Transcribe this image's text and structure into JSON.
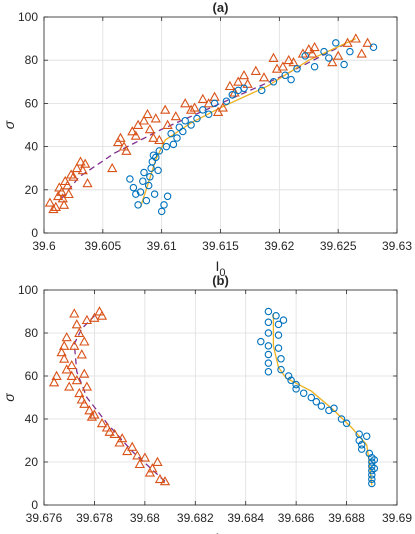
{
  "chart_data": [
    {
      "type": "scatter",
      "title": "(a)",
      "xlabel": "I",
      "xlabel_sub": "0",
      "ylabel": "σ",
      "xlim": [
        39.6,
        39.63
      ],
      "ylim": [
        0,
        100
      ],
      "xticks": [
        "39.6",
        "39.605",
        "39.61",
        "39.615",
        "39.62",
        "39.625",
        "39.63"
      ],
      "yticks": [
        "0",
        "20",
        "40",
        "60",
        "80",
        "100"
      ],
      "grid": true,
      "series": [
        {
          "marker": "triangle",
          "color": "#D95319",
          "points": [
            [
              39.6005,
              14
            ],
            [
              39.6008,
              11
            ],
            [
              39.601,
              12
            ],
            [
              39.6012,
              17
            ],
            [
              39.6013,
              21
            ],
            [
              39.6015,
              19
            ],
            [
              39.6016,
              16
            ],
            [
              39.6017,
              13
            ],
            [
              39.6018,
              24
            ],
            [
              39.602,
              22
            ],
            [
              39.6021,
              18
            ],
            [
              39.6023,
              27
            ],
            [
              39.6025,
              26
            ],
            [
              39.6028,
              30
            ],
            [
              39.6031,
              33
            ],
            [
              39.6033,
              29
            ],
            [
              39.6035,
              32
            ],
            [
              39.6037,
              23
            ],
            [
              39.6058,
              30
            ],
            [
              39.6063,
              42
            ],
            [
              39.6065,
              44
            ],
            [
              39.6068,
              40
            ],
            [
              39.607,
              38
            ],
            [
              39.6075,
              47
            ],
            [
              39.6078,
              45
            ],
            [
              39.608,
              50
            ],
            [
              39.6085,
              52
            ],
            [
              39.6088,
              55
            ],
            [
              39.609,
              48
            ],
            [
              39.6093,
              44
            ],
            [
              39.6095,
              53
            ],
            [
              39.6098,
              43
            ],
            [
              39.6103,
              57
            ],
            [
              39.6105,
              50
            ],
            [
              39.6112,
              54
            ],
            [
              39.612,
              60
            ],
            [
              39.6125,
              57
            ],
            [
              39.6128,
              58
            ],
            [
              39.6135,
              62
            ],
            [
              39.614,
              60
            ],
            [
              39.6145,
              63
            ],
            [
              39.6148,
              56
            ],
            [
              39.6152,
              58
            ],
            [
              39.6158,
              68
            ],
            [
              39.6162,
              65
            ],
            [
              39.6165,
              70
            ],
            [
              39.617,
              73
            ],
            [
              39.6173,
              69
            ],
            [
              39.618,
              75
            ],
            [
              39.6187,
              72
            ],
            [
              39.6195,
              81
            ],
            [
              39.6198,
              76
            ],
            [
              39.6203,
              77
            ],
            [
              39.6208,
              80
            ],
            [
              39.6212,
              79
            ],
            [
              39.622,
              83
            ],
            [
              39.6225,
              85
            ],
            [
              39.6228,
              83
            ],
            [
              39.623,
              86
            ],
            [
              39.6245,
              79
            ],
            [
              39.625,
              82
            ],
            [
              39.6258,
              88
            ],
            [
              39.6265,
              90
            ],
            [
              39.627,
              83
            ],
            [
              39.6275,
              88
            ]
          ]
        },
        {
          "marker": "circle",
          "color": "#0072BD",
          "points": [
            [
              39.6073,
              25
            ],
            [
              39.6076,
              21
            ],
            [
              39.6078,
              18
            ],
            [
              39.608,
              13
            ],
            [
              39.6082,
              19
            ],
            [
              39.6084,
              24
            ],
            [
              39.6085,
              28
            ],
            [
              39.6087,
              15
            ],
            [
              39.6089,
              22
            ],
            [
              39.609,
              26
            ],
            [
              39.6091,
              30
            ],
            [
              39.6092,
              33
            ],
            [
              39.6093,
              36
            ],
            [
              39.6094,
              18
            ],
            [
              39.6095,
              35
            ],
            [
              39.6097,
              29
            ],
            [
              39.6098,
              38
            ],
            [
              39.61,
              10
            ],
            [
              39.6102,
              13
            ],
            [
              39.6104,
              40
            ],
            [
              39.6105,
              17
            ],
            [
              39.6108,
              46
            ],
            [
              39.611,
              41
            ],
            [
              39.6113,
              44
            ],
            [
              39.6115,
              49
            ],
            [
              39.6118,
              47
            ],
            [
              39.612,
              52
            ],
            [
              39.6125,
              50
            ],
            [
              39.613,
              53
            ],
            [
              39.6135,
              57
            ],
            [
              39.614,
              55
            ],
            [
              39.6145,
              60
            ],
            [
              39.6155,
              61
            ],
            [
              39.616,
              64
            ],
            [
              39.6165,
              66
            ],
            [
              39.617,
              67
            ],
            [
              39.6185,
              66
            ],
            [
              39.6195,
              70
            ],
            [
              39.6205,
              73
            ],
            [
              39.621,
              71
            ],
            [
              39.6215,
              76
            ],
            [
              39.6222,
              82
            ],
            [
              39.623,
              77
            ],
            [
              39.6238,
              84
            ],
            [
              39.6242,
              81
            ],
            [
              39.6248,
              88
            ],
            [
              39.6255,
              78
            ],
            [
              39.626,
              84
            ],
            [
              39.628,
              86
            ]
          ]
        }
      ],
      "fit_lines": [
        {
          "style": "dashed",
          "color": "#7E2F8E",
          "points": [
            [
              39.6015,
              16
            ],
            [
              39.603,
              26
            ],
            [
              39.606,
              37
            ],
            [
              39.61,
              48
            ],
            [
              39.615,
              60
            ],
            [
              39.62,
              72
            ],
            [
              39.6265,
              90
            ]
          ]
        },
        {
          "style": "solid",
          "color": "#EDB120",
          "points": [
            [
              39.6082,
              12
            ],
            [
              39.6088,
              22
            ],
            [
              39.6095,
              34
            ],
            [
              39.6103,
              43
            ],
            [
              39.6125,
              51
            ],
            [
              39.615,
              58
            ],
            [
              39.619,
              68
            ],
            [
              39.6225,
              80
            ],
            [
              39.6265,
              90
            ]
          ]
        }
      ]
    },
    {
      "type": "scatter",
      "title": "(b)",
      "xlabel": "I",
      "xlabel_sub": "0",
      "ylabel": "σ",
      "xlim": [
        39.676,
        39.69
      ],
      "ylim": [
        0,
        100
      ],
      "xticks": [
        "39.676",
        "39.678",
        "39.68",
        "39.682",
        "39.684",
        "39.686",
        "39.688",
        "39.69"
      ],
      "yticks": [
        "0",
        "20",
        "40",
        "60",
        "80",
        "100"
      ],
      "grid": true,
      "series": [
        {
          "marker": "triangle",
          "color": "#D95319",
          "points": [
            [
              39.6764,
              57
            ],
            [
              39.6765,
              60
            ],
            [
              39.6767,
              71
            ],
            [
              39.6768,
              74
            ],
            [
              39.6768,
              68
            ],
            [
              39.6769,
              78
            ],
            [
              39.6769,
              63
            ],
            [
              39.677,
              55
            ],
            [
              39.6771,
              65
            ],
            [
              39.6771,
              60
            ],
            [
              39.6772,
              74
            ],
            [
              39.6772,
              89
            ],
            [
              39.6773,
              84
            ],
            [
              39.6773,
              58
            ],
            [
              39.6774,
              80
            ],
            [
              39.6774,
              52
            ],
            [
              39.6775,
              70
            ],
            [
              39.6775,
              49
            ],
            [
              39.6776,
              76
            ],
            [
              39.6776,
              61
            ],
            [
              39.6776,
              47
            ],
            [
              39.6777,
              86
            ],
            [
              39.6777,
              55
            ],
            [
              39.6778,
              44
            ],
            [
              39.6779,
              41
            ],
            [
              39.678,
              87
            ],
            [
              39.678,
              42
            ],
            [
              39.6782,
              90
            ],
            [
              39.6783,
              88
            ],
            [
              39.6783,
              38
            ],
            [
              39.6785,
              36
            ],
            [
              39.6786,
              34
            ],
            [
              39.6788,
              33
            ],
            [
              39.679,
              29
            ],
            [
              39.6791,
              31
            ],
            [
              39.6793,
              25
            ],
            [
              39.6795,
              27
            ],
            [
              39.6797,
              23
            ],
            [
              39.6798,
              19
            ],
            [
              39.68,
              22
            ],
            [
              39.6802,
              15
            ],
            [
              39.6803,
              17
            ],
            [
              39.6805,
              20
            ],
            [
              39.6806,
              12
            ],
            [
              39.6808,
              11
            ]
          ]
        },
        {
          "marker": "circle",
          "color": "#0072BD",
          "points": [
            [
              39.6846,
              76
            ],
            [
              39.6849,
              90
            ],
            [
              39.6849,
              85
            ],
            [
              39.6849,
              80
            ],
            [
              39.6849,
              74
            ],
            [
              39.6849,
              70
            ],
            [
              39.6849,
              66
            ],
            [
              39.6849,
              62
            ],
            [
              39.6852,
              88
            ],
            [
              39.6853,
              84
            ],
            [
              39.6853,
              79
            ],
            [
              39.6853,
              73
            ],
            [
              39.6854,
              68
            ],
            [
              39.6854,
              63
            ],
            [
              39.6855,
              86
            ],
            [
              39.6857,
              60
            ],
            [
              39.6858,
              58
            ],
            [
              39.686,
              56
            ],
            [
              39.686,
              54
            ],
            [
              39.6863,
              52
            ],
            [
              39.6866,
              50
            ],
            [
              39.6868,
              48
            ],
            [
              39.687,
              46
            ],
            [
              39.6873,
              44
            ],
            [
              39.6875,
              45
            ],
            [
              39.6878,
              40
            ],
            [
              39.688,
              38
            ],
            [
              39.6885,
              33
            ],
            [
              39.6885,
              30
            ],
            [
              39.6886,
              28
            ],
            [
              39.6886,
              26
            ],
            [
              39.6888,
              32
            ],
            [
              39.6889,
              24
            ],
            [
              39.689,
              22
            ],
            [
              39.689,
              20
            ],
            [
              39.689,
              18
            ],
            [
              39.689,
              16
            ],
            [
              39.689,
              14
            ],
            [
              39.689,
              12
            ],
            [
              39.689,
              10
            ],
            [
              39.6891,
              21
            ],
            [
              39.6891,
              17
            ]
          ]
        }
      ],
      "fit_lines": [
        {
          "style": "dashed",
          "color": "#7E2F8E",
          "points": [
            [
              39.6808,
              11
            ],
            [
              39.6795,
              25
            ],
            [
              39.6785,
              38
            ],
            [
              39.6777,
              50
            ],
            [
              39.6773,
              62
            ],
            [
              39.6772,
              75
            ],
            [
              39.6775,
              82
            ],
            [
              39.678,
              88
            ]
          ]
        },
        {
          "style": "solid",
          "color": "#EDB120",
          "points": [
            [
              39.6851,
              89
            ],
            [
              39.6851,
              74
            ],
            [
              39.6853,
              64
            ],
            [
              39.6856,
              59
            ],
            [
              39.6866,
              53
            ],
            [
              39.6875,
              44
            ],
            [
              39.6882,
              36
            ],
            [
              39.6888,
              28
            ],
            [
              39.6889,
              20
            ],
            [
              39.689,
              9
            ]
          ]
        }
      ]
    }
  ]
}
